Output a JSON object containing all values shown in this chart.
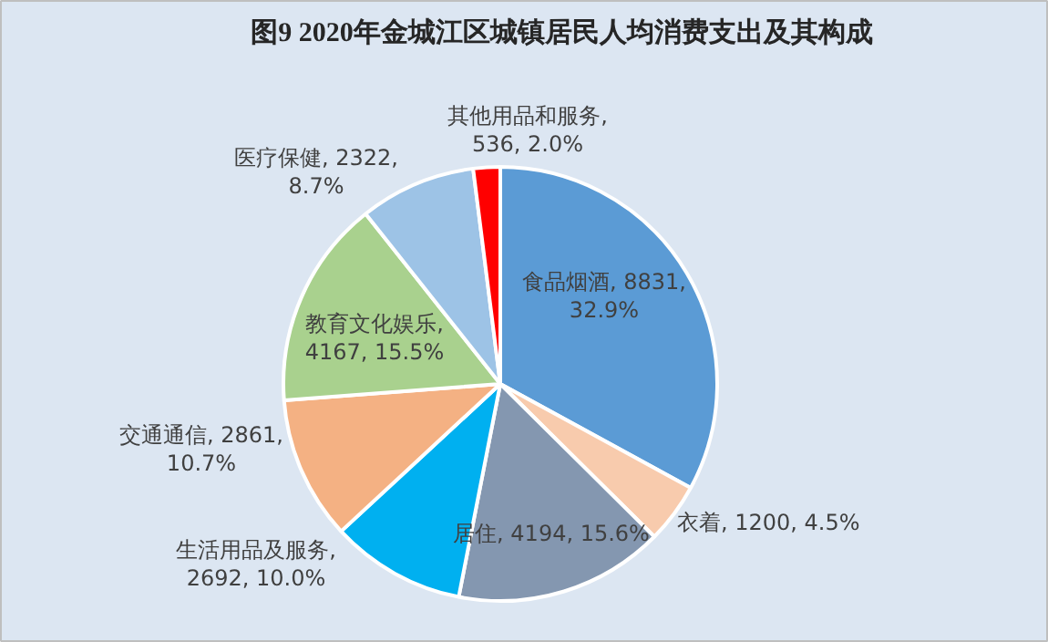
{
  "chart_data": {
    "type": "pie",
    "title": "图9   2020年金城江区城镇居民人均消费支出及其构成",
    "categories": [
      "食品烟酒",
      "衣着",
      "居住",
      "生活用品及服务",
      "交通通信",
      "教育文化娱乐",
      "医疗保健",
      "其他用品和服务"
    ],
    "values": [
      8831,
      1200,
      4194,
      2692,
      2861,
      4167,
      2322,
      536
    ],
    "value_labels": [
      "8831, 32.9%",
      "1200, 4.5%",
      "4194, 15.6%",
      ", 2692, 10.0%",
      "2861, 10.7%",
      ", 4167, 15.5%",
      "2322, 8.7%",
      ", 536, 2.0%"
    ],
    "colors": [
      "#5b9bd5",
      "#f8cbad",
      "#8497b0",
      "#00b0f0",
      "#f4b183",
      "#a9d18e",
      "#9dc3e6",
      "#ff0000"
    ]
  }
}
